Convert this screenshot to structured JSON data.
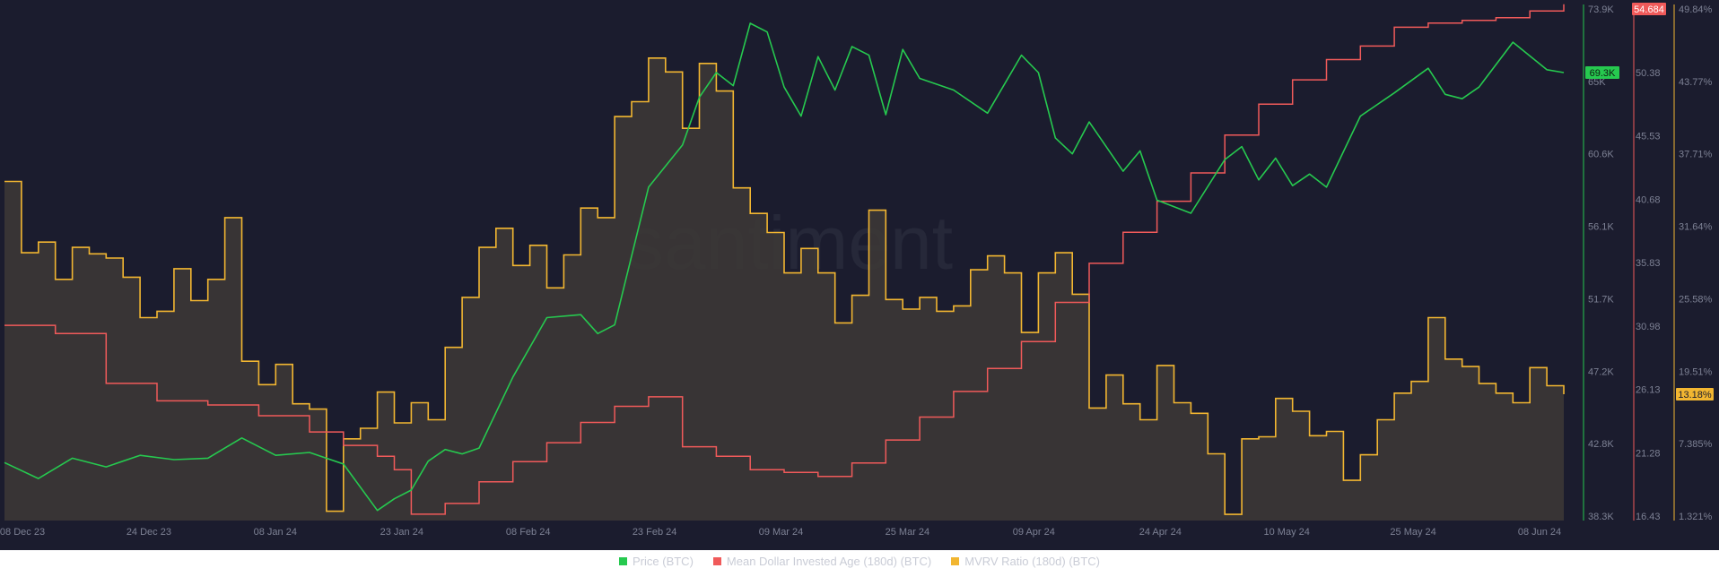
{
  "watermark": "santiment",
  "colors": {
    "background": "#1b1c2e",
    "price": "#26c94f",
    "age": "#f05a5a",
    "mvrv": "#f2b631",
    "grid": "#2a2c40",
    "ticks": "#7d8194"
  },
  "chart_data": {
    "type": "line",
    "x_ticks": [
      "08 Dec 23",
      "24 Dec 23",
      "08 Jan 24",
      "23 Jan 24",
      "08 Feb 24",
      "23 Feb 24",
      "09 Mar 24",
      "25 Mar 24",
      "09 Apr 24",
      "24 Apr 24",
      "10 May 24",
      "25 May 24",
      "08 Jun 24"
    ],
    "x_range": [
      0,
      184
    ],
    "axes": {
      "price": {
        "ticks": [
          "73.9K",
          "69.3K",
          "65K",
          "60.6K",
          "56.1K",
          "51.7K",
          "47.2K",
          "42.8K",
          "38.3K"
        ],
        "ylim": [
          38300,
          73900
        ],
        "current": "69.3K"
      },
      "age": {
        "ticks": [
          "54.684",
          "50.38",
          "45.53",
          "40.68",
          "35.83",
          "30.98",
          "26.13",
          "21.28",
          "16.43"
        ],
        "ylim": [
          16.43,
          54.684
        ],
        "current": "54.684"
      },
      "mvrv": {
        "ticks": [
          "49.84%",
          "43.77%",
          "37.71%",
          "31.64%",
          "25.58%",
          "19.51%",
          "13.18%",
          "7.385%",
          "1.321%"
        ],
        "ylim": [
          1.321,
          49.84
        ],
        "current": "13.18%"
      }
    },
    "series": [
      {
        "name": "Price (BTC)",
        "axis": "price",
        "x": [
          0,
          4,
          8,
          12,
          16,
          20,
          24,
          28,
          32,
          36,
          40,
          44,
          46,
          48,
          50,
          52,
          54,
          56,
          60,
          64,
          68,
          70,
          72,
          76,
          80,
          82,
          84,
          86,
          88,
          90,
          92,
          94,
          96,
          98,
          100,
          102,
          104,
          106,
          108,
          112,
          116,
          120,
          122,
          124,
          126,
          128,
          130,
          132,
          134,
          136,
          140,
          144,
          146,
          148,
          150,
          152,
          154,
          156,
          160,
          164,
          168,
          170,
          172,
          174,
          178,
          182,
          184
        ],
        "values": [
          42300,
          41200,
          42600,
          42000,
          42800,
          42500,
          42600,
          44000,
          42800,
          43000,
          42200,
          39000,
          39800,
          40400,
          42400,
          43200,
          42900,
          43300,
          48200,
          52300,
          52500,
          51200,
          51800,
          61300,
          64200,
          67500,
          69200,
          68300,
          72600,
          72000,
          68200,
          66200,
          70300,
          68000,
          71000,
          70400,
          66300,
          70800,
          68800,
          68000,
          66400,
          70400,
          69200,
          64700,
          63600,
          65800,
          64100,
          62400,
          63800,
          60400,
          59500,
          63200,
          64100,
          61800,
          63300,
          61400,
          62200,
          61300,
          66200,
          67800,
          69500,
          67700,
          67400,
          68200,
          71300,
          69400,
          69200
        ]
      },
      {
        "name": "Mean Dollar Invested Age (180d) (BTC)",
        "axis": "age",
        "x": [
          0,
          6,
          12,
          18,
          24,
          30,
          36,
          40,
          44,
          46,
          48,
          52,
          56,
          60,
          64,
          68,
          72,
          76,
          80,
          84,
          88,
          92,
          96,
          100,
          104,
          108,
          112,
          116,
          120,
          124,
          128,
          132,
          136,
          140,
          144,
          148,
          152,
          156,
          160,
          164,
          168,
          172,
          176,
          180,
          184
        ],
        "values": [
          30.9,
          30.3,
          26.6,
          25.3,
          25.0,
          24.2,
          23.0,
          22.0,
          21.2,
          20.2,
          16.9,
          17.7,
          19.3,
          20.8,
          22.2,
          23.7,
          24.9,
          25.6,
          21.9,
          21.2,
          20.2,
          20.0,
          19.7,
          20.7,
          22.4,
          24.1,
          26.0,
          27.7,
          29.7,
          32.6,
          35.5,
          37.8,
          40.1,
          42.2,
          45.0,
          47.3,
          49.1,
          50.6,
          51.6,
          53.0,
          53.3,
          53.5,
          53.7,
          54.2,
          54.7
        ]
      },
      {
        "name": "MVRV Ratio (180d) (BTC)",
        "axis": "mvrv",
        "x": [
          0,
          2,
          4,
          6,
          8,
          10,
          12,
          14,
          16,
          18,
          20,
          22,
          24,
          26,
          28,
          30,
          32,
          34,
          36,
          38,
          40,
          42,
          44,
          46,
          48,
          50,
          52,
          54,
          56,
          58,
          60,
          62,
          64,
          66,
          68,
          70,
          72,
          74,
          76,
          78,
          80,
          82,
          84,
          86,
          88,
          90,
          92,
          94,
          96,
          98,
          100,
          102,
          104,
          106,
          108,
          110,
          112,
          114,
          116,
          118,
          120,
          122,
          124,
          126,
          128,
          130,
          132,
          134,
          136,
          138,
          140,
          142,
          144,
          146,
          148,
          150,
          152,
          154,
          156,
          158,
          160,
          162,
          164,
          166,
          168,
          170,
          172,
          174,
          176,
          178,
          180,
          182,
          184
        ],
        "values": [
          33.2,
          26.5,
          27.5,
          24.0,
          27.0,
          26.4,
          26.0,
          24.2,
          20.4,
          21.0,
          25.0,
          22.0,
          24.0,
          29.8,
          16.3,
          14.1,
          16.0,
          12.3,
          11.8,
          2.2,
          9.0,
          10.0,
          13.4,
          10.5,
          12.4,
          10.8,
          17.6,
          22.3,
          27.0,
          28.8,
          25.3,
          27.2,
          23.2,
          26.3,
          30.7,
          29.8,
          39.3,
          40.7,
          44.8,
          43.5,
          38.2,
          44.3,
          41.7,
          32.6,
          30.2,
          28.4,
          24.6,
          26.9,
          24.6,
          19.9,
          22.5,
          30.5,
          22.1,
          21.2,
          22.3,
          21.0,
          21.5,
          24.9,
          26.2,
          24.6,
          19.0,
          24.6,
          26.5,
          22.6,
          11.9,
          15.0,
          12.3,
          10.8,
          15.9,
          12.4,
          11.4,
          7.6,
          1.9,
          9.0,
          9.2,
          12.8,
          11.6,
          9.3,
          9.7,
          5.1,
          7.5,
          10.8,
          13.3,
          14.4,
          20.4,
          16.5,
          15.8,
          14.2,
          13.3,
          12.4,
          15.7,
          14.0,
          13.2
        ]
      }
    ],
    "grid": false,
    "legend_position": "bottom-center"
  },
  "legend": [
    {
      "label": "Price (BTC)",
      "color": "#26c94f"
    },
    {
      "label": "Mean Dollar Invested Age (180d) (BTC)",
      "color": "#f05a5a"
    },
    {
      "label": "MVRV Ratio (180d) (BTC)",
      "color": "#f2b631"
    }
  ]
}
